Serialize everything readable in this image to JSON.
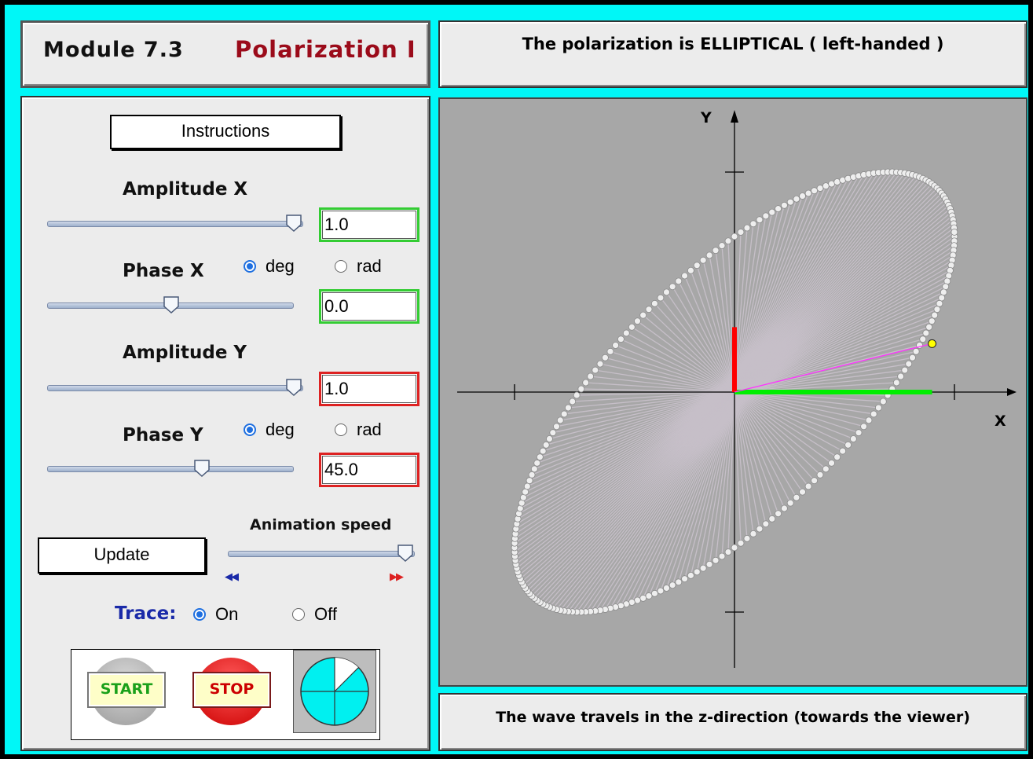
{
  "header": {
    "module": "Module 7.3",
    "name": "Polarization  I"
  },
  "status": {
    "text": "The polarization is ELLIPTICAL ( left-handed )"
  },
  "footer": {
    "text": "The wave travels in the z-direction (towards the viewer)"
  },
  "controls": {
    "instructions_label": "Instructions",
    "amplitude_x": {
      "label": "Amplitude X",
      "value": "1.0",
      "level": 1.0
    },
    "phase_x": {
      "label": "Phase X",
      "value": "0.0",
      "level": 0.5,
      "unit_deg": "deg",
      "unit_rad": "rad",
      "selected": "deg"
    },
    "amplitude_y": {
      "label": "Amplitude Y",
      "value": "1.0",
      "level": 1.0
    },
    "phase_y": {
      "label": "Phase Y",
      "value": "45.0",
      "level": 0.625,
      "unit_deg": "deg",
      "unit_rad": "rad",
      "selected": "deg"
    },
    "animation_speed": {
      "label": "Animation speed",
      "level": 1.0
    },
    "update_label": "Update",
    "trace": {
      "label": "Trace:",
      "on": "On",
      "off": "Off",
      "selected": "On"
    },
    "start_label": "START",
    "stop_label": "STOP"
  },
  "plot": {
    "x_label": "X",
    "y_label": "Y",
    "amp_x": 1.0,
    "amp_y": 1.0,
    "phase_x_deg": 0,
    "phase_y_deg": 45,
    "current_phase_deg": 15
  },
  "colors": {
    "background": "#00f7f7",
    "plot_bg": "#a7a7a7",
    "x_component": "#00ee00",
    "y_component": "#ff0000",
    "vector": "#ff33ff",
    "tip": "#ffff00",
    "title_accent": "#9b0b1a",
    "trace_label": "#1a2aa8"
  }
}
